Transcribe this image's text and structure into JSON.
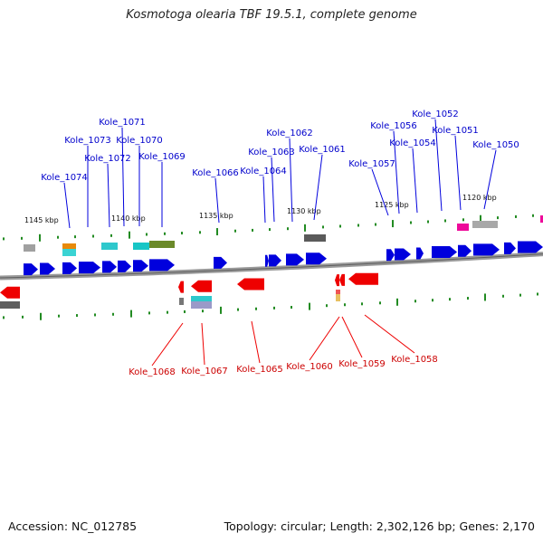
{
  "title": "Kosmotoga olearia TBF 19.5.1, complete genome",
  "footer": {
    "accession": "Accession: NC_012785",
    "summary": "Topology: circular; Length: 2,302,126 bp; Genes: 2,170"
  },
  "colors": {
    "forward": "#0000dd",
    "reverse": "#ee0000",
    "forward_label": "#0000cc",
    "reverse_label": "#cc0000",
    "tick": "#228b22",
    "backbone": "#8c8c8c"
  },
  "scale_labels": [
    "1145 kbp",
    "1140 kbp",
    "1135 kbp",
    "1130 kbp",
    "1125 kbp",
    "1120 kbp"
  ],
  "forward_genes": [
    "Kole_1074",
    "Kole_1073",
    "Kole_1072",
    "Kole_1071",
    "Kole_1070",
    "Kole_1069",
    "Kole_1066",
    "Kole_1064",
    "Kole_1063",
    "Kole_1062",
    "Kole_1061",
    "Kole_1057",
    "Kole_1056",
    "Kole_1054",
    "Kole_1052",
    "Kole_1051",
    "Kole_1050"
  ],
  "reverse_genes": [
    "Kole_1068",
    "Kole_1067",
    "Kole_1065",
    "Kole_1060",
    "Kole_1059",
    "Kole_1058"
  ]
}
